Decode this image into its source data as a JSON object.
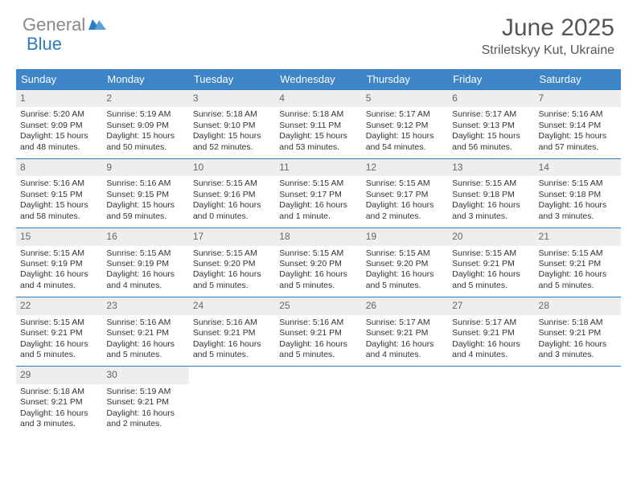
{
  "brand": {
    "text_gray": "General",
    "text_blue": "Blue"
  },
  "title": "June 2025",
  "location": "Striletskyy Kut, Ukraine",
  "colors": {
    "header_bg": "#3d85c6",
    "row_border": "#2d7bc0",
    "daynum_bg": "#eeeeee",
    "logo_gray": "#888888",
    "logo_blue": "#2d7bc0"
  },
  "day_headers": [
    "Sunday",
    "Monday",
    "Tuesday",
    "Wednesday",
    "Thursday",
    "Friday",
    "Saturday"
  ],
  "weeks": [
    [
      {
        "n": "1",
        "sunrise": "5:20 AM",
        "sunset": "9:09 PM",
        "daylight": "15 hours and 48 minutes."
      },
      {
        "n": "2",
        "sunrise": "5:19 AM",
        "sunset": "9:09 PM",
        "daylight": "15 hours and 50 minutes."
      },
      {
        "n": "3",
        "sunrise": "5:18 AM",
        "sunset": "9:10 PM",
        "daylight": "15 hours and 52 minutes."
      },
      {
        "n": "4",
        "sunrise": "5:18 AM",
        "sunset": "9:11 PM",
        "daylight": "15 hours and 53 minutes."
      },
      {
        "n": "5",
        "sunrise": "5:17 AM",
        "sunset": "9:12 PM",
        "daylight": "15 hours and 54 minutes."
      },
      {
        "n": "6",
        "sunrise": "5:17 AM",
        "sunset": "9:13 PM",
        "daylight": "15 hours and 56 minutes."
      },
      {
        "n": "7",
        "sunrise": "5:16 AM",
        "sunset": "9:14 PM",
        "daylight": "15 hours and 57 minutes."
      }
    ],
    [
      {
        "n": "8",
        "sunrise": "5:16 AM",
        "sunset": "9:15 PM",
        "daylight": "15 hours and 58 minutes."
      },
      {
        "n": "9",
        "sunrise": "5:16 AM",
        "sunset": "9:15 PM",
        "daylight": "15 hours and 59 minutes."
      },
      {
        "n": "10",
        "sunrise": "5:15 AM",
        "sunset": "9:16 PM",
        "daylight": "16 hours and 0 minutes."
      },
      {
        "n": "11",
        "sunrise": "5:15 AM",
        "sunset": "9:17 PM",
        "daylight": "16 hours and 1 minute."
      },
      {
        "n": "12",
        "sunrise": "5:15 AM",
        "sunset": "9:17 PM",
        "daylight": "16 hours and 2 minutes."
      },
      {
        "n": "13",
        "sunrise": "5:15 AM",
        "sunset": "9:18 PM",
        "daylight": "16 hours and 3 minutes."
      },
      {
        "n": "14",
        "sunrise": "5:15 AM",
        "sunset": "9:18 PM",
        "daylight": "16 hours and 3 minutes."
      }
    ],
    [
      {
        "n": "15",
        "sunrise": "5:15 AM",
        "sunset": "9:19 PM",
        "daylight": "16 hours and 4 minutes."
      },
      {
        "n": "16",
        "sunrise": "5:15 AM",
        "sunset": "9:19 PM",
        "daylight": "16 hours and 4 minutes."
      },
      {
        "n": "17",
        "sunrise": "5:15 AM",
        "sunset": "9:20 PM",
        "daylight": "16 hours and 5 minutes."
      },
      {
        "n": "18",
        "sunrise": "5:15 AM",
        "sunset": "9:20 PM",
        "daylight": "16 hours and 5 minutes."
      },
      {
        "n": "19",
        "sunrise": "5:15 AM",
        "sunset": "9:20 PM",
        "daylight": "16 hours and 5 minutes."
      },
      {
        "n": "20",
        "sunrise": "5:15 AM",
        "sunset": "9:21 PM",
        "daylight": "16 hours and 5 minutes."
      },
      {
        "n": "21",
        "sunrise": "5:15 AM",
        "sunset": "9:21 PM",
        "daylight": "16 hours and 5 minutes."
      }
    ],
    [
      {
        "n": "22",
        "sunrise": "5:15 AM",
        "sunset": "9:21 PM",
        "daylight": "16 hours and 5 minutes."
      },
      {
        "n": "23",
        "sunrise": "5:16 AM",
        "sunset": "9:21 PM",
        "daylight": "16 hours and 5 minutes."
      },
      {
        "n": "24",
        "sunrise": "5:16 AM",
        "sunset": "9:21 PM",
        "daylight": "16 hours and 5 minutes."
      },
      {
        "n": "25",
        "sunrise": "5:16 AM",
        "sunset": "9:21 PM",
        "daylight": "16 hours and 5 minutes."
      },
      {
        "n": "26",
        "sunrise": "5:17 AM",
        "sunset": "9:21 PM",
        "daylight": "16 hours and 4 minutes."
      },
      {
        "n": "27",
        "sunrise": "5:17 AM",
        "sunset": "9:21 PM",
        "daylight": "16 hours and 4 minutes."
      },
      {
        "n": "28",
        "sunrise": "5:18 AM",
        "sunset": "9:21 PM",
        "daylight": "16 hours and 3 minutes."
      }
    ],
    [
      {
        "n": "29",
        "sunrise": "5:18 AM",
        "sunset": "9:21 PM",
        "daylight": "16 hours and 3 minutes."
      },
      {
        "n": "30",
        "sunrise": "5:19 AM",
        "sunset": "9:21 PM",
        "daylight": "16 hours and 2 minutes."
      },
      null,
      null,
      null,
      null,
      null
    ]
  ],
  "labels": {
    "sunrise": "Sunrise: ",
    "sunset": "Sunset: ",
    "daylight": "Daylight: "
  }
}
